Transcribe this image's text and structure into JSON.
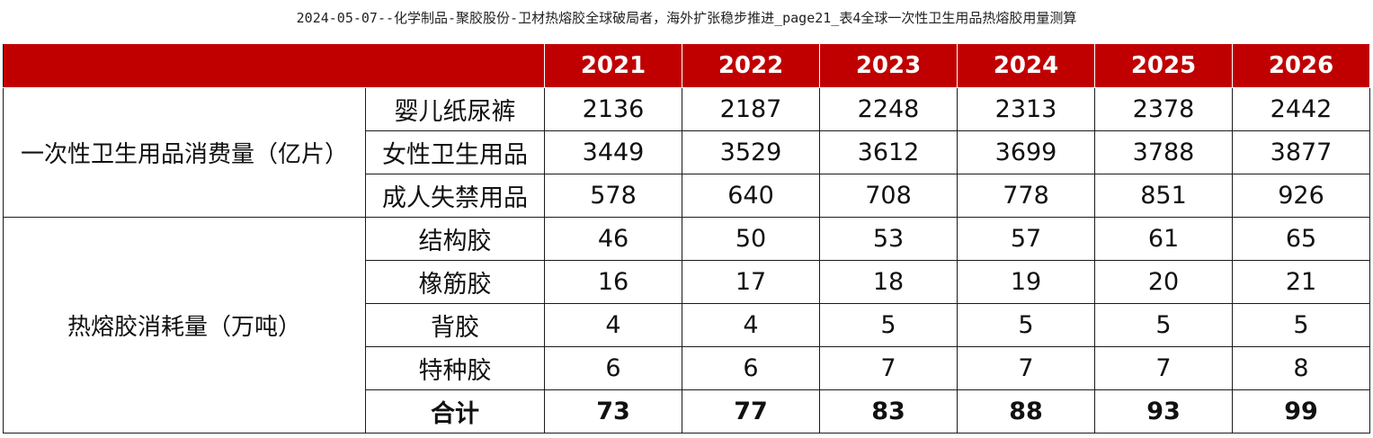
{
  "caption": "2024-05-07--化学制品-聚胶股份-卫材热熔胶全球破局者，海外扩张稳步推进_page21_表4全球一次性卫生用品热熔胶用量测算",
  "table": {
    "years": [
      "2021",
      "2022",
      "2023",
      "2024",
      "2025",
      "2026"
    ],
    "groups": [
      {
        "label": "一次性卫生用品消费量（亿片）",
        "rows": [
          {
            "label": "婴儿纸尿裤",
            "values": [
              "2136",
              "2187",
              "2248",
              "2313",
              "2378",
              "2442"
            ]
          },
          {
            "label": "女性卫生用品",
            "values": [
              "3449",
              "3529",
              "3612",
              "3699",
              "3788",
              "3877"
            ]
          },
          {
            "label": "成人失禁用品",
            "values": [
              "578",
              "640",
              "708",
              "778",
              "851",
              "926"
            ]
          }
        ]
      },
      {
        "label": "热熔胶消耗量（万吨）",
        "rows": [
          {
            "label": "结构胶",
            "values": [
              "46",
              "50",
              "53",
              "57",
              "61",
              "65"
            ]
          },
          {
            "label": "橡筋胶",
            "values": [
              "16",
              "17",
              "18",
              "19",
              "20",
              "21"
            ]
          },
          {
            "label": "背胶",
            "values": [
              "4",
              "4",
              "5",
              "5",
              "5",
              "5"
            ]
          },
          {
            "label": "特种胶",
            "values": [
              "6",
              "6",
              "7",
              "7",
              "7",
              "8"
            ]
          },
          {
            "label": "合计",
            "values": [
              "73",
              "77",
              "83",
              "88",
              "93",
              "99"
            ]
          }
        ]
      }
    ]
  },
  "colors": {
    "header_bg": "#c00000",
    "header_text": "#ffffff"
  }
}
